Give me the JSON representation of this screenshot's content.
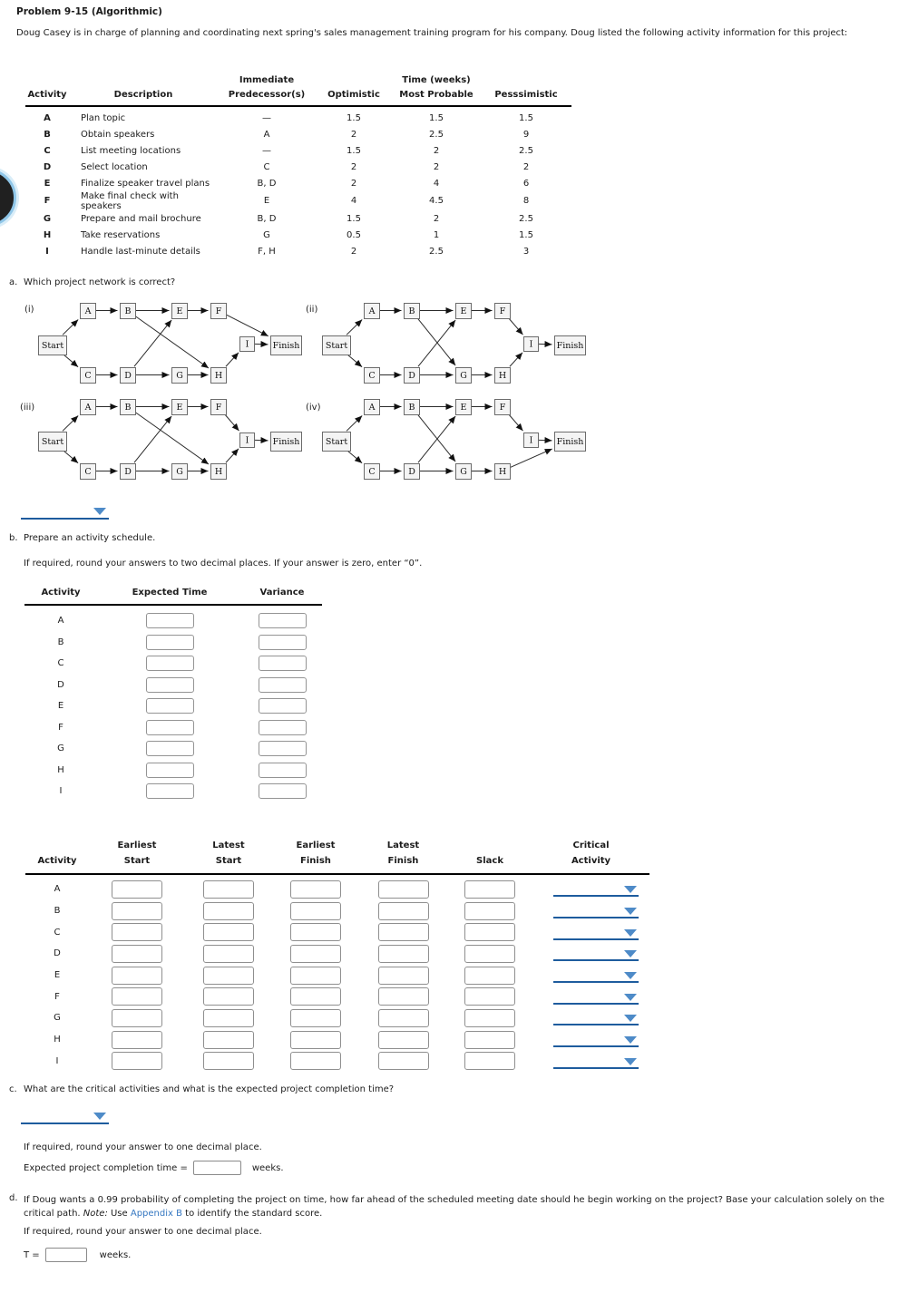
{
  "colors": {
    "ddline": "#1e5c9e",
    "ddtri": "#4e8bc8",
    "link": "#3577c1"
  },
  "activities": [
    "A",
    "B",
    "C",
    "D",
    "E",
    "F",
    "G",
    "H",
    "I"
  ],
  "problem": {
    "title": "Problem 9-15 (Algorithmic)",
    "intro": "Doug Casey is in charge of planning and coordinating next spring's sales management training program for his company. Doug listed the following activity information for this project:"
  },
  "activity_table": {
    "group_headers": {
      "immediate": "Immediate",
      "time": "Time (weeks)"
    },
    "columns": [
      "Activity",
      "Description",
      "Predecessor(s)",
      "Optimistic",
      "Most Probable",
      "Pesssimistic"
    ],
    "rows": [
      {
        "activity": "A",
        "description": "Plan topic",
        "predecessors": "—",
        "optimistic": "1.5",
        "most_probable": "1.5",
        "pessimistic": "1.5"
      },
      {
        "activity": "B",
        "description": "Obtain speakers",
        "predecessors": "A",
        "optimistic": "2",
        "most_probable": "2.5",
        "pessimistic": "9"
      },
      {
        "activity": "C",
        "description": "List meeting locations",
        "predecessors": "—",
        "optimistic": "1.5",
        "most_probable": "2",
        "pessimistic": "2.5"
      },
      {
        "activity": "D",
        "description": "Select location",
        "predecessors": "C",
        "optimistic": "2",
        "most_probable": "2",
        "pessimistic": "2"
      },
      {
        "activity": "E",
        "description": "Finalize speaker travel plans",
        "predecessors": "B, D",
        "optimistic": "2",
        "most_probable": "4",
        "pessimistic": "6"
      },
      {
        "activity": "F",
        "description": "Make final check with speakers",
        "predecessors": "E",
        "optimistic": "4",
        "most_probable": "4.5",
        "pessimistic": "8"
      },
      {
        "activity": "G",
        "description": "Prepare and mail brochure",
        "predecessors": "B, D",
        "optimistic": "1.5",
        "most_probable": "2",
        "pessimistic": "2.5"
      },
      {
        "activity": "H",
        "description": "Take reservations",
        "predecessors": "G",
        "optimistic": "0.5",
        "most_probable": "1",
        "pessimistic": "1.5"
      },
      {
        "activity": "I",
        "description": "Handle last-minute details",
        "predecessors": "F, H",
        "optimistic": "2",
        "most_probable": "2.5",
        "pessimistic": "3"
      }
    ]
  },
  "section_a": {
    "label": "a.",
    "question": "Which project network is correct?",
    "start_label": "Start",
    "finish_label": "Finish",
    "nodes": [
      "Start",
      "A",
      "B",
      "C",
      "D",
      "E",
      "F",
      "G",
      "H",
      "I",
      "Finish"
    ],
    "diagrams": [
      {
        "label": "(i)",
        "edges": [
          [
            "Start",
            "A"
          ],
          [
            "Start",
            "C"
          ],
          [
            "A",
            "B"
          ],
          [
            "B",
            "E"
          ],
          [
            "B",
            "H"
          ],
          [
            "C",
            "D"
          ],
          [
            "D",
            "E"
          ],
          [
            "D",
            "G"
          ],
          [
            "E",
            "F"
          ],
          [
            "G",
            "H"
          ],
          [
            "F",
            "Finish"
          ],
          [
            "H",
            "I"
          ],
          [
            "I",
            "Finish"
          ]
        ]
      },
      {
        "label": "(ii)",
        "edges": [
          [
            "Start",
            "A"
          ],
          [
            "Start",
            "C"
          ],
          [
            "A",
            "B"
          ],
          [
            "B",
            "E"
          ],
          [
            "B",
            "G"
          ],
          [
            "C",
            "D"
          ],
          [
            "D",
            "E"
          ],
          [
            "D",
            "G"
          ],
          [
            "E",
            "F"
          ],
          [
            "G",
            "H"
          ],
          [
            "F",
            "I"
          ],
          [
            "H",
            "I"
          ],
          [
            "I",
            "Finish"
          ]
        ]
      },
      {
        "label": "(iii)",
        "edges": [
          [
            "Start",
            "A"
          ],
          [
            "Start",
            "C"
          ],
          [
            "A",
            "B"
          ],
          [
            "B",
            "E"
          ],
          [
            "B",
            "H"
          ],
          [
            "C",
            "D"
          ],
          [
            "D",
            "E"
          ],
          [
            "D",
            "G"
          ],
          [
            "E",
            "F"
          ],
          [
            "G",
            "H"
          ],
          [
            "F",
            "I"
          ],
          [
            "H",
            "I"
          ],
          [
            "I",
            "Finish"
          ]
        ]
      },
      {
        "label": "(iv)",
        "edges": [
          [
            "Start",
            "A"
          ],
          [
            "Start",
            "C"
          ],
          [
            "A",
            "B"
          ],
          [
            "B",
            "E"
          ],
          [
            "B",
            "G"
          ],
          [
            "C",
            "D"
          ],
          [
            "D",
            "E"
          ],
          [
            "D",
            "G"
          ],
          [
            "E",
            "F"
          ],
          [
            "G",
            "H"
          ],
          [
            "F",
            "I"
          ],
          [
            "H",
            "Finish"
          ],
          [
            "I",
            "Finish"
          ]
        ]
      }
    ]
  },
  "section_b": {
    "label": "b.",
    "text": "Prepare an activity schedule.",
    "note": "If required, round your answers to two decimal places. If your answer is zero, enter “0”."
  },
  "schedule_b": {
    "columns": [
      "Activity",
      "Expected Time",
      "Variance"
    ]
  },
  "schedule_full": {
    "line1": [
      "",
      "Earliest",
      "Latest",
      "Earliest",
      "Latest",
      "",
      "Critical"
    ],
    "line2": [
      "Activity",
      "Start",
      "Start",
      "Finish",
      "Finish",
      "Slack",
      "Activity"
    ]
  },
  "section_c": {
    "label": "c.",
    "question": "What are the critical activities and what is the expected project completion time?",
    "note": "If required, round your answer to one decimal place.",
    "completion_label": "Expected project completion time =",
    "units": "weeks."
  },
  "section_d": {
    "label": "d.",
    "text_part1": "If Doug wants a 0.99 probability of completing the project on time, how far ahead of the scheduled meeting date should he begin working on the project? Base your calculation solely on the critical path. ",
    "note_label": "Note:",
    "text_part2": " Use ",
    "link_text": "Appendix B",
    "text_part3": " to identify the standard score.",
    "note": "If required, round your answer to one decimal place.",
    "t_label": "T =",
    "units": "weeks."
  }
}
